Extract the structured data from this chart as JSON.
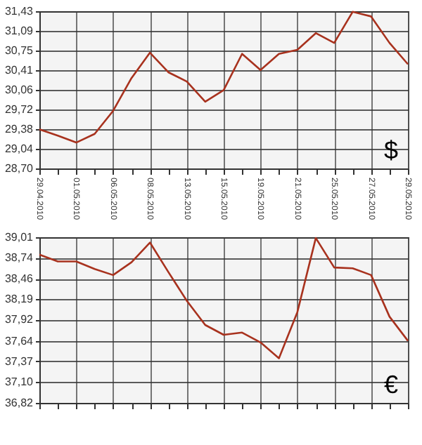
{
  "chart_data": [
    {
      "type": "line",
      "categories": [
        "29.04.2010",
        null,
        "01.05.2010",
        null,
        "06.05.2010",
        null,
        "08.05.2010",
        null,
        "13.05.2010",
        null,
        "15.05.2010",
        null,
        "19.05.2010",
        null,
        "21.05.2010",
        null,
        "25.05.2010",
        null,
        "27.05.2010",
        null,
        "29.05.2010"
      ],
      "series": [
        {
          "color": "#a8321e",
          "values": [
            29.38,
            29.27,
            29.15,
            29.3,
            29.7,
            30.27,
            30.71,
            30.37,
            30.21,
            29.86,
            30.06,
            30.69,
            30.41,
            30.69,
            30.76,
            31.05,
            30.88,
            31.42,
            31.34,
            30.88,
            30.51
          ]
        }
      ],
      "ylim": [
        28.7,
        31.43
      ],
      "yticks": [
        {
          "value": 28.7,
          "label": "28,70"
        },
        {
          "value": 29.04,
          "label": "29,04"
        },
        {
          "value": 29.38,
          "label": "29,38"
        },
        {
          "value": 29.72,
          "label": "29,72"
        },
        {
          "value": 30.06,
          "label": "30,06"
        },
        {
          "value": 30.41,
          "label": "30,41"
        },
        {
          "value": 30.75,
          "label": "30,75"
        },
        {
          "value": 31.09,
          "label": "31,09"
        },
        {
          "value": 31.43,
          "label": "31,43"
        }
      ],
      "grid": true,
      "marker": "none",
      "line_style": "solid",
      "annotations": [
        "$"
      ]
    },
    {
      "type": "line",
      "categories": [
        "29.04.2010",
        null,
        "01.05.2010",
        null,
        "06.05.2010",
        null,
        "08.05.2010",
        null,
        "13.05.2010",
        null,
        "15.05.2010",
        null,
        "19.05.2010",
        null,
        "21.05.2010",
        null,
        "25.05.2010",
        null,
        "27.05.2010",
        null,
        "29.05.2010"
      ],
      "series": [
        {
          "color": "#a8321e",
          "values": [
            38.78,
            38.69,
            38.69,
            38.59,
            38.51,
            38.68,
            38.94,
            38.55,
            38.17,
            37.85,
            37.72,
            37.75,
            37.62,
            37.41,
            38.02,
            39.0,
            38.61,
            38.6,
            38.51,
            37.96,
            37.64
          ]
        }
      ],
      "ylim": [
        36.82,
        39.01
      ],
      "yticks": [
        {
          "value": 36.82,
          "label": "36,82"
        },
        {
          "value": 37.1,
          "label": "37,10"
        },
        {
          "value": 37.37,
          "label": "37,37"
        },
        {
          "value": 37.64,
          "label": "37,64"
        },
        {
          "value": 37.92,
          "label": "37,92"
        },
        {
          "value": 38.19,
          "label": "38,19"
        },
        {
          "value": 38.46,
          "label": "38,46"
        },
        {
          "value": 38.74,
          "label": "38,74"
        },
        {
          "value": 39.01,
          "label": "39,01"
        }
      ],
      "grid": true,
      "marker": "none",
      "line_style": "solid",
      "tick_labels": "y",
      "annotations": [
        "€"
      ]
    }
  ]
}
